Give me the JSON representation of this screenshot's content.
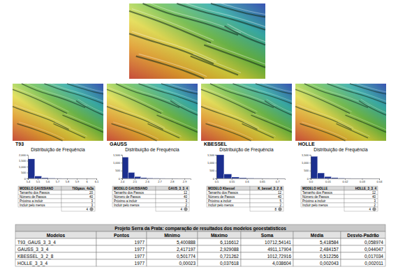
{
  "chart_data": [
    {
      "type": "histogram",
      "title": "Distribuição de Frequência",
      "color": "#1c2f8f",
      "bins": [
        5.4,
        5.47,
        5.54,
        5.61,
        5.68,
        5.75,
        5.82,
        5.89,
        5.96,
        6.03,
        6.1
      ],
      "values": [
        1650,
        200,
        60,
        30,
        15,
        10,
        5,
        4,
        2,
        1
      ],
      "xlim": [
        5.4,
        6.1
      ],
      "xticks": [
        5.4,
        5.5,
        5.6,
        5.7,
        5.8,
        5.9,
        6,
        6.1
      ],
      "ylim": [
        0,
        2000
      ],
      "yticks": [
        0,
        500,
        {
          "value": 1000,
          "label": "1,000"
        },
        {
          "value": 1500,
          "label": "1,500"
        },
        {
          "value": 2000,
          "label": "2,000"
        }
      ]
    },
    {
      "type": "histogram",
      "title": "Distribuição de Frequência",
      "color": "#1c2f8f",
      "bins": [
        2.4,
        2.45,
        2.5,
        2.55,
        2.6,
        2.65,
        2.7,
        2.75,
        2.8,
        2.85,
        2.9,
        2.95
      ],
      "values": [
        1350,
        380,
        120,
        50,
        30,
        18,
        12,
        8,
        5,
        2,
        2
      ],
      "xlim": [
        2.4,
        2.95
      ],
      "xticks": [
        2.4,
        2.5,
        2.6,
        2.7,
        2.8,
        2.9
      ],
      "ylim": [
        0,
        1500
      ],
      "yticks": [
        0,
        500,
        {
          "value": 1000,
          "label": "1,000"
        },
        {
          "value": 1500,
          "label": "1,500"
        }
      ]
    },
    {
      "type": "histogram",
      "title": "Distribuição de Frequência",
      "color": "#1c2f8f",
      "bins": [
        0.5,
        0.525,
        0.55,
        0.575,
        0.6,
        0.625,
        0.65,
        0.675,
        0.7,
        0.725
      ],
      "values": [
        1500,
        280,
        90,
        45,
        25,
        15,
        10,
        7,
        5
      ],
      "xlim": [
        0.5,
        0.725
      ],
      "xticks": [
        0.5,
        0.55,
        0.6,
        0.65,
        0.7
      ],
      "ylim": [
        0,
        1500
      ],
      "yticks": [
        0,
        500,
        {
          "value": 1000,
          "label": "1,000"
        },
        {
          "value": 1500,
          "label": "1,500"
        }
      ]
    },
    {
      "type": "histogram",
      "title": "Distribuição de Frequência",
      "color": "#1c2f8f",
      "bins": [
        0,
        0.004,
        0.008,
        0.012,
        0.016,
        0.02,
        0.024,
        0.028,
        0.032,
        0.036,
        0.04
      ],
      "values": [
        1400,
        350,
        120,
        50,
        25,
        12,
        8,
        5,
        4,
        3
      ],
      "xlim": [
        0,
        0.04
      ],
      "xticks": [
        {
          "value": 0,
          "label": "0.0"
        },
        0.01,
        0.02,
        0.03,
        0.04
      ],
      "ylim": [
        0,
        1500
      ],
      "yticks": [
        0,
        500,
        {
          "value": 1000,
          "label": "1,000"
        },
        {
          "value": 1500,
          "label": "1,500"
        }
      ]
    }
  ],
  "panels": [
    {
      "name": "T93",
      "table": {
        "header": [
          "MODELO GAUSSIANO",
          "T93gaus_4x3a"
        ],
        "rows": [
          [
            "Tamanho dos Passos",
            20
          ],
          [
            "Número de Passos",
            40
          ],
          [
            "Próximo a incluir",
            3
          ],
          [
            "Incluir pelo menos",
            3
          ]
        ],
        "footer": 4
      }
    },
    {
      "name": "GAUSS",
      "table": {
        "header": [
          "MODELO GAUSSIANO",
          "GAUS_3_3_4"
        ],
        "rows": [
          [
            "Tamanho dos Passos",
            12
          ],
          [
            "Número de Passos",
            40
          ],
          [
            "Próximo a incluir",
            3
          ],
          [
            "Incluir pelo menos",
            2
          ]
        ],
        "footer": 4
      }
    },
    {
      "name": "KBESSEL",
      "table": {
        "header": [
          "MODELO Kbessel",
          "K_bessel_3_2_8"
        ],
        "rows": [
          [
            "Tamanho dos Passos",
            12
          ],
          [
            "Número de Passos",
            40
          ],
          [
            "Próximo a incluir",
            5
          ],
          [
            "Incluir pelo menos",
            2
          ]
        ],
        "footer": 8
      }
    },
    {
      "name": "HOLLE",
      "table": {
        "header": [
          "MODELO HOLLE",
          "HOLLE_3_3_4"
        ],
        "rows": [
          [
            "Tamanho dos Passos",
            12
          ],
          [
            "Número de Passos",
            40
          ],
          [
            "Próximo a incluir",
            3
          ],
          [
            "Incluir pelo menos",
            2
          ]
        ],
        "footer": 4
      }
    }
  ],
  "summary_table": {
    "title": "Projeto Serra da Prata: comparação de resultados dos modelos geoestatísticos",
    "columns": [
      "Modelos",
      "Pontos",
      "Mínimo",
      "Máximo",
      "Soma",
      "Média",
      "Desvio-Padrão"
    ],
    "rows": [
      [
        "T93_GAUS_3_3_4",
        "1977",
        "5,400888",
        "6,116612",
        "10712,54141",
        "5,418584",
        "0,058974"
      ],
      [
        "GAUSS_3_3_4",
        "1977",
        "2,417197",
        "2,929088",
        "4911,17904",
        "2,484157",
        "0,044047"
      ],
      [
        "KBESSEL_3_2_8",
        "1977",
        "0,501774",
        "0,721262",
        "1012,72916",
        "0,512256",
        "0,017034"
      ],
      [
        "HOLLE_3_3_4",
        "1977",
        "0,00023",
        "0,037618",
        "4,038604",
        "0,002043",
        "0,002011"
      ]
    ]
  }
}
